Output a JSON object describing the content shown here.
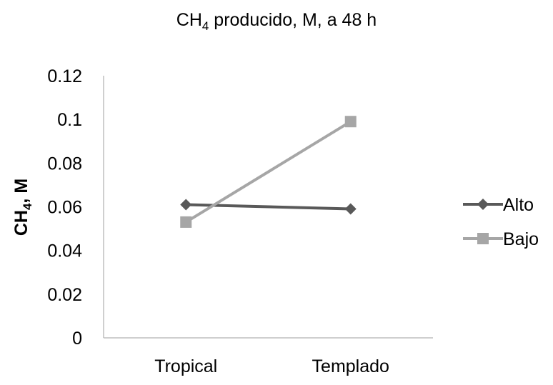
{
  "chart_data": {
    "type": "line",
    "title": {
      "prefix": "CH",
      "subscript": "4",
      "suffix": " producido, M, a 48 h"
    },
    "ylabel": {
      "prefix": "CH",
      "subscript": "4",
      "suffix": ", M"
    },
    "xlabel": "",
    "categories": [
      "Tropical",
      "Templado"
    ],
    "ylim": [
      0,
      0.12
    ],
    "yticks": [
      0,
      0.02,
      0.04,
      0.06,
      0.08,
      0.1,
      0.12
    ],
    "ytick_labels": [
      "0",
      "0.02",
      "0.04",
      "0.06",
      "0.08",
      "0.1",
      "0.12"
    ],
    "grid": false,
    "legend_position": "right",
    "series": [
      {
        "name": "Alto",
        "values": [
          0.061,
          0.059
        ],
        "color": "#595959",
        "marker": "diamond"
      },
      {
        "name": "Bajo",
        "values": [
          0.053,
          0.099
        ],
        "color": "#a6a6a6",
        "marker": "square"
      }
    ]
  }
}
